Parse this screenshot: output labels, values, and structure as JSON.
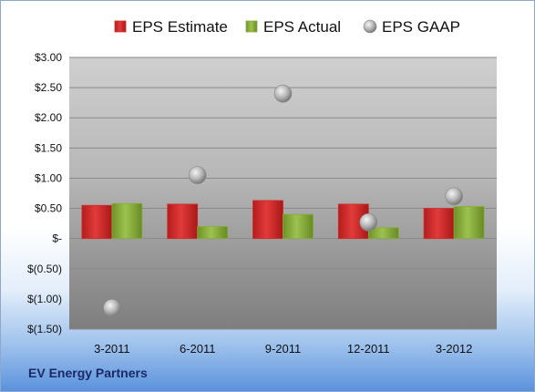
{
  "company_name": "EV Energy Partners",
  "colors": {
    "estimate": "#d42b2b",
    "actual": "#86ad3c",
    "gaap": "#a9a9a9"
  },
  "chart_data": {
    "type": "bar",
    "categories": [
      "3-2011",
      "6-2011",
      "9-2011",
      "12-2011",
      "3-2012"
    ],
    "series": [
      {
        "name": "EPS Estimate",
        "type": "bar",
        "values": [
          0.55,
          0.57,
          0.63,
          0.57,
          0.5
        ]
      },
      {
        "name": "EPS Actual",
        "type": "bar",
        "values": [
          0.58,
          0.2,
          0.4,
          0.18,
          0.53
        ]
      },
      {
        "name": "EPS GAAP",
        "type": "scatter",
        "values": [
          -1.15,
          1.05,
          2.4,
          0.27,
          0.7
        ]
      }
    ],
    "ylim": [
      -1.5,
      3.0
    ],
    "yticks": [
      3.0,
      2.5,
      2.0,
      1.5,
      1.0,
      0.5,
      0,
      -0.5,
      -1.0,
      -1.5
    ],
    "ytick_labels": [
      "$3.00",
      "$2.50",
      "$2.00",
      "$1.50",
      "$1.00",
      "$0.50",
      "$-",
      "$(0.50)",
      "$(1.00)",
      "$(1.50)"
    ],
    "grid": true,
    "legend_position": "top"
  }
}
